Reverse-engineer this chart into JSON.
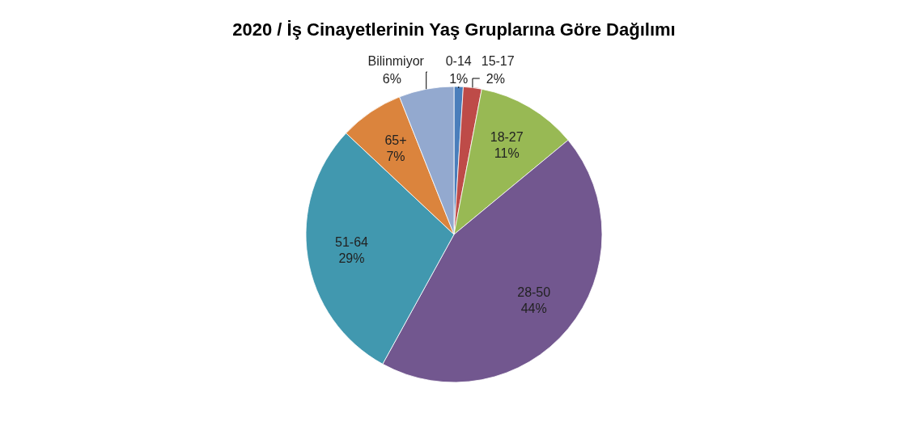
{
  "chart_data": {
    "type": "pie",
    "title": "2020 / İş Cinayetlerinin Yaş Gruplarına Göre Dağılımı",
    "categories": [
      "0-14",
      "15-17",
      "18-27",
      "28-50",
      "51-64",
      "65+",
      "Bilinmiyor"
    ],
    "values": [
      1,
      2,
      11,
      44,
      29,
      7,
      6
    ],
    "colors": [
      "#4a7ebb",
      "#be4b48",
      "#98b954",
      "#72578f",
      "#4198af",
      "#db843d",
      "#93a9cf"
    ],
    "value_labels": [
      "1%",
      "2%",
      "11%",
      "44%",
      "29%",
      "7%",
      "6%"
    ],
    "legend": false
  }
}
